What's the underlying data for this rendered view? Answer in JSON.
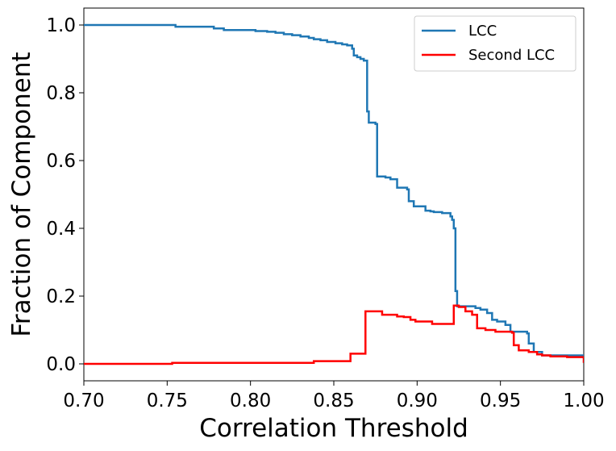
{
  "chart_data": {
    "type": "line",
    "title": "",
    "xlabel": "Correlation Threshold",
    "ylabel": "Fraction of Component",
    "xlim": [
      0.7,
      1.0
    ],
    "ylim": [
      -0.05,
      1.05
    ],
    "xticks": [
      0.7,
      0.75,
      0.8,
      0.85,
      0.9,
      0.95,
      1.0
    ],
    "xtick_labels": [
      "0.70",
      "0.75",
      "0.80",
      "0.85",
      "0.90",
      "0.95",
      "1.00"
    ],
    "yticks": [
      0.0,
      0.2,
      0.4,
      0.6,
      0.8,
      1.0
    ],
    "ytick_labels": [
      "0.0",
      "0.2",
      "0.4",
      "0.6",
      "0.8",
      "1.0"
    ],
    "grid": false,
    "legend_position": "top-right",
    "series": [
      {
        "name": "LCC",
        "color": "#1f77b4",
        "step": true,
        "x": [
          0.7,
          0.755,
          0.778,
          0.784,
          0.803,
          0.81,
          0.815,
          0.82,
          0.825,
          0.83,
          0.835,
          0.838,
          0.842,
          0.846,
          0.851,
          0.855,
          0.858,
          0.861,
          0.862,
          0.864,
          0.866,
          0.868,
          0.87,
          0.871,
          0.875,
          0.876,
          0.881,
          0.884,
          0.888,
          0.894,
          0.895,
          0.898,
          0.905,
          0.908,
          0.91,
          0.915,
          0.92,
          0.921,
          0.922,
          0.923,
          0.924,
          0.935,
          0.938,
          0.942,
          0.945,
          0.948,
          0.953,
          0.956,
          0.966,
          0.967,
          0.97,
          0.975,
          1.0
        ],
        "y": [
          1.0,
          0.995,
          0.99,
          0.985,
          0.982,
          0.98,
          0.977,
          0.973,
          0.97,
          0.966,
          0.962,
          0.958,
          0.955,
          0.95,
          0.946,
          0.943,
          0.94,
          0.93,
          0.91,
          0.905,
          0.9,
          0.895,
          0.745,
          0.712,
          0.708,
          0.553,
          0.55,
          0.545,
          0.52,
          0.515,
          0.48,
          0.465,
          0.452,
          0.45,
          0.448,
          0.445,
          0.435,
          0.425,
          0.4,
          0.215,
          0.17,
          0.165,
          0.16,
          0.15,
          0.13,
          0.125,
          0.115,
          0.095,
          0.09,
          0.06,
          0.035,
          0.025,
          0.025
        ]
      },
      {
        "name": "Second LCC",
        "color": "#ff0000",
        "step": true,
        "x": [
          0.7,
          0.753,
          0.838,
          0.86,
          0.868,
          0.869,
          0.879,
          0.888,
          0.892,
          0.896,
          0.899,
          0.909,
          0.921,
          0.922,
          0.925,
          0.929,
          0.933,
          0.936,
          0.941,
          0.947,
          0.957,
          0.958,
          0.961,
          0.967,
          0.972,
          0.975,
          0.98,
          0.99,
          1.0
        ],
        "y": [
          0.0,
          0.003,
          0.008,
          0.03,
          0.03,
          0.155,
          0.145,
          0.14,
          0.138,
          0.13,
          0.125,
          0.118,
          0.118,
          0.172,
          0.168,
          0.155,
          0.145,
          0.105,
          0.1,
          0.095,
          0.092,
          0.055,
          0.04,
          0.035,
          0.028,
          0.025,
          0.022,
          0.02,
          0.003
        ]
      }
    ]
  }
}
